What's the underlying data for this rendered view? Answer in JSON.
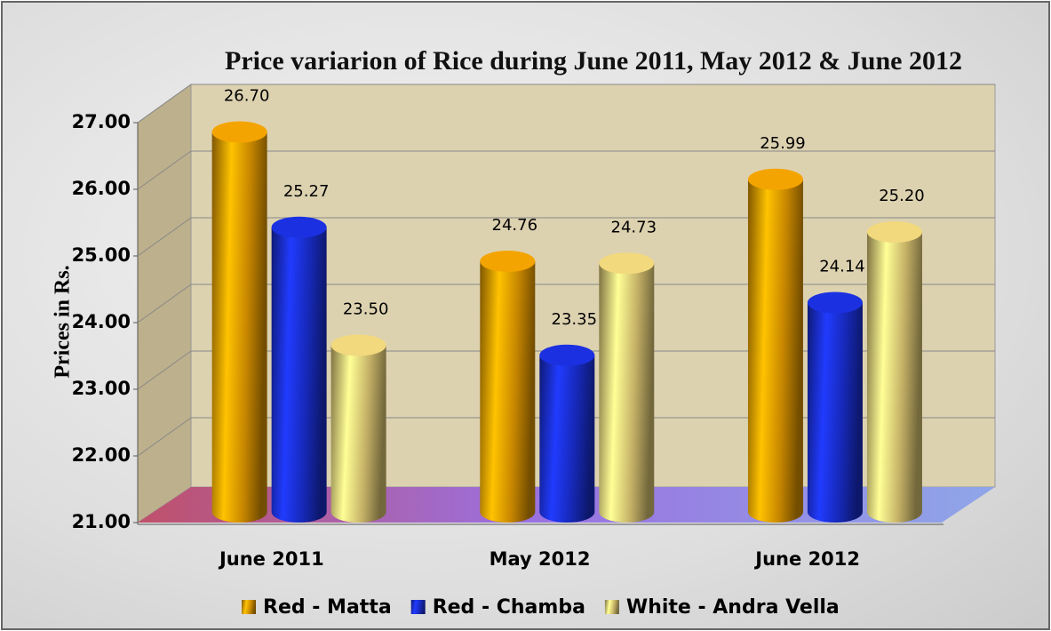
{
  "chart_data": {
    "type": "bar",
    "title": "Price variarion of Rice during June 2011, May 2012 & June 2012",
    "y_label": "Prices in Rs.",
    "categories": [
      "June 2011",
      "May 2012",
      "June 2012"
    ],
    "series": [
      {
        "name": "Red - Matta",
        "color": "#e89c00",
        "values": [
          26.7,
          24.76,
          25.99
        ],
        "value_labels": [
          "26.70",
          "24.76",
          "25.99"
        ]
      },
      {
        "name": "Red - Chamba",
        "color": "#1a2fd6",
        "values": [
          25.27,
          23.35,
          24.14
        ],
        "value_labels": [
          "25.27",
          "23.35",
          "24.14"
        ]
      },
      {
        "name": "White - Andra Vella",
        "color": "#e6cf78",
        "values": [
          23.5,
          24.73,
          25.2
        ],
        "value_labels": [
          "23.50",
          "24.73",
          "25.20"
        ]
      }
    ],
    "ylim": [
      21,
      27
    ],
    "yticks": [
      {
        "value": 21,
        "label": "21.00"
      },
      {
        "value": 22,
        "label": "22.00"
      },
      {
        "value": 23,
        "label": "23.00"
      },
      {
        "value": 24,
        "label": "24.00"
      },
      {
        "value": 25,
        "label": "25.00"
      },
      {
        "value": 26,
        "label": "26.00"
      },
      {
        "value": 27,
        "label": "27.00"
      }
    ],
    "grid": true
  }
}
